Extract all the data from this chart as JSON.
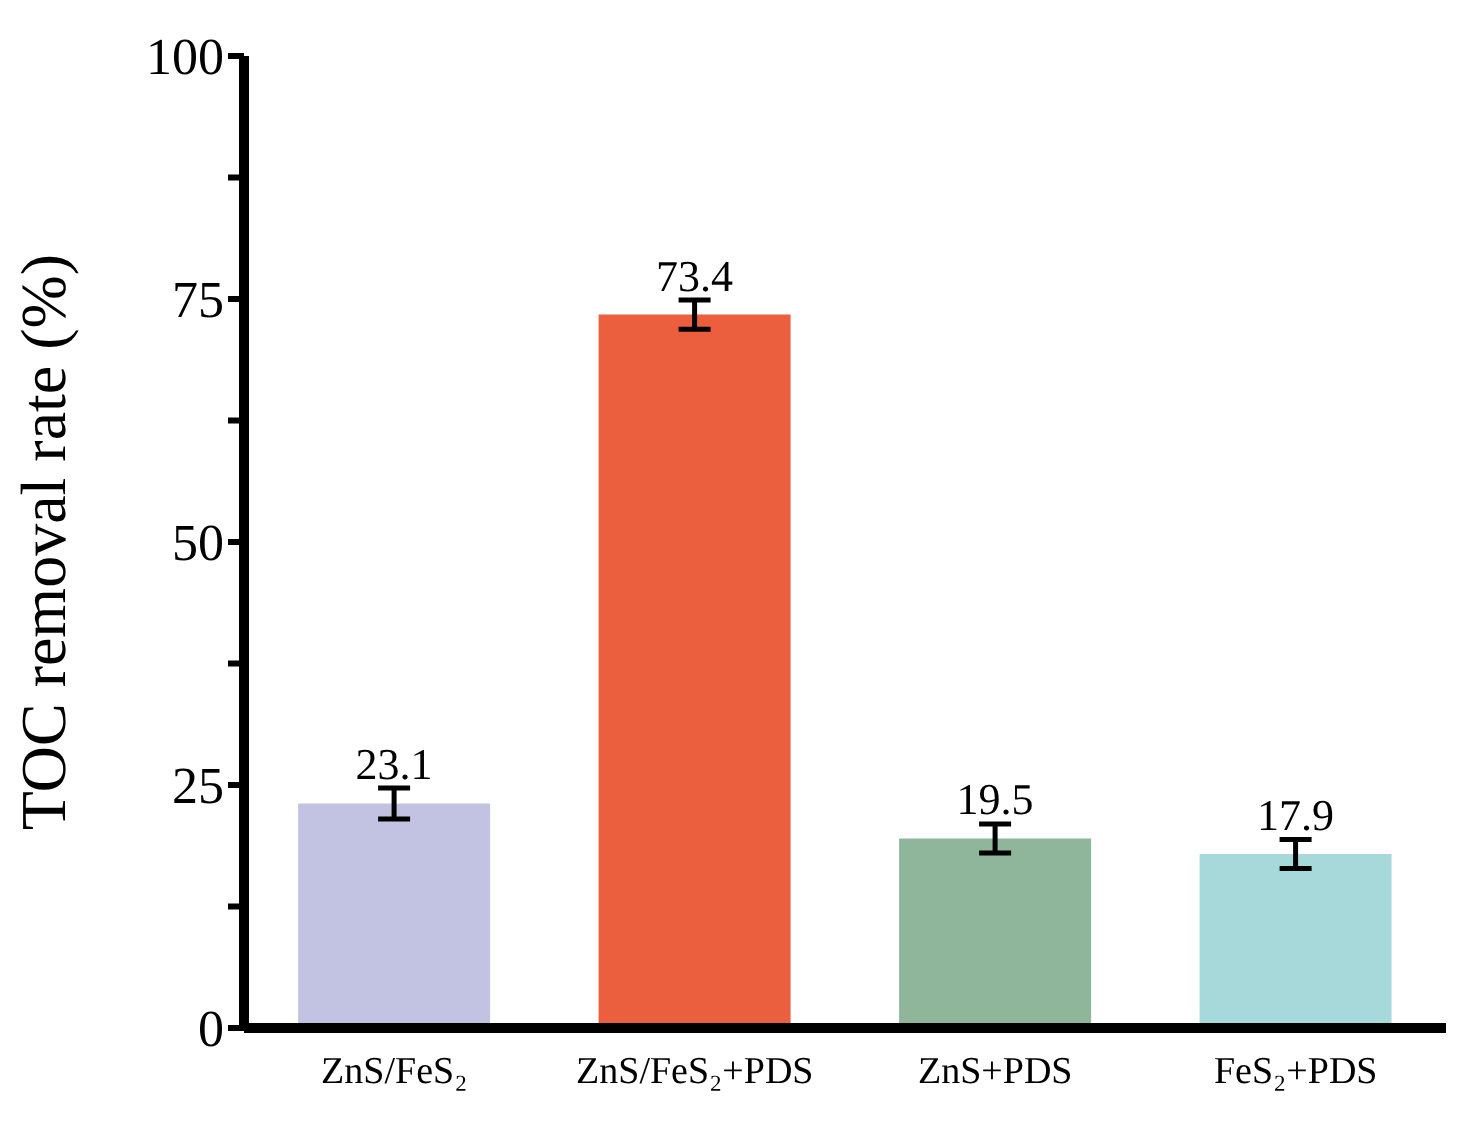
{
  "chart_data": {
    "type": "bar",
    "ylabel": "TOC removal rate (%)",
    "categories": [
      "ZnS/FeS₂",
      "ZnS/FeS₂+PDS",
      "ZnS+PDS",
      "FeS₂+PDS"
    ],
    "values": [
      23.1,
      73.4,
      19.5,
      17.9
    ],
    "colors": [
      "#c2c3e3",
      "#eb5e3e",
      "#8fb59b",
      "#a8d9da"
    ],
    "errors": [
      1.6,
      1.5,
      1.5,
      1.5
    ],
    "data_labels": true,
    "ylim": [
      0,
      100
    ],
    "yticks": [
      0,
      {
        "value": 12.5,
        "label": null
      },
      25,
      {
        "value": 37.5,
        "label": null
      },
      50,
      {
        "value": 62.5,
        "label": null
      },
      75,
      {
        "value": 87.5,
        "label": null
      },
      100
    ],
    "grid": false,
    "legend": false
  }
}
